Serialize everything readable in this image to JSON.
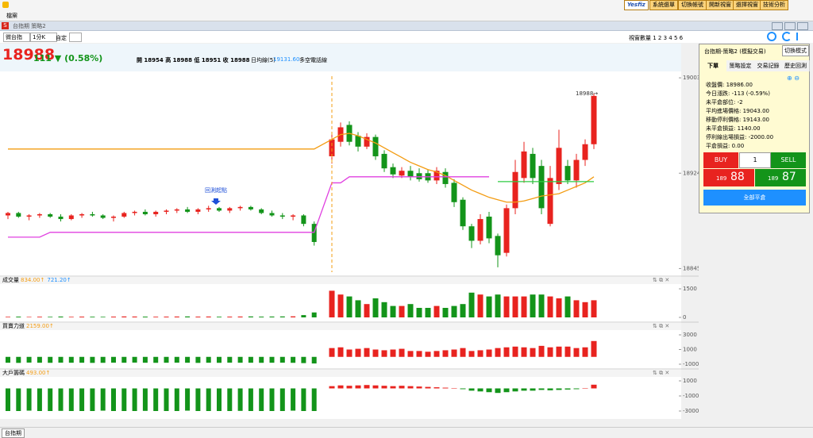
{
  "app": {
    "menu": "檔案",
    "logo": "Yesfiz",
    "top_buttons": [
      "系統選單",
      "切換帳號",
      "開新視窗",
      "選擇視窗",
      "技術分析"
    ],
    "window_title": "台指期 策略2"
  },
  "toolbar": {
    "symbol": "微台指",
    "period": "1分K",
    "custom": "自定",
    "window_count": "視窗數量 1 2 3 4 5 6"
  },
  "quote": {
    "price": "18988",
    "change": "111 ▼ (0.58%)",
    "ohlc_text": "開 18954 高 18988 低 18951 收 18988",
    "ma_label": "日均線(5)",
    "ma_value": "19131.60",
    "ma_suffix": "多空電話線"
  },
  "side_panel": {
    "title": "台指期-策略2 (模擬交易)",
    "mode_button": "切換模式",
    "tabs": [
      "下單",
      "策略設定",
      "交易記錄",
      "歷史回測"
    ],
    "info": [
      "收盤價: 18986.00",
      "今日漲跌: -113 (-0.59%)",
      "未平倉部位: -2",
      "平均進場價格: 19043.00",
      "移動停利價格: 19143.00",
      "未平倉損益: 1140.00",
      "停利線出場損益: -2000.00",
      "平倉損益: 0.00"
    ],
    "buy": "BUY",
    "qty": "1",
    "sell": "SELL",
    "bid_prefix": "189",
    "bid": "88",
    "ask_prefix": "189",
    "ask": "87",
    "close_all": "全部平倉"
  },
  "bottom_tab": "台指期",
  "chart_data": [
    {
      "type": "candlestick",
      "up_color": "#e8231f",
      "down_color": "#13941a",
      "annotation": "回測起點",
      "last_label": "18988→",
      "ylim": [
        18842,
        19007
      ],
      "yticks": [
        18845,
        18924,
        19003
      ],
      "ohlc": [
        [
          18889,
          18892,
          18886,
          18891
        ],
        [
          18891,
          18892,
          18887,
          18888
        ],
        [
          18888,
          18890,
          18885,
          18889
        ],
        [
          18889,
          18891,
          18887,
          18890
        ],
        [
          18890,
          18891,
          18887,
          18888
        ],
        [
          18888,
          18890,
          18884,
          18886
        ],
        [
          18886,
          18890,
          18885,
          18889
        ],
        [
          18889,
          18891,
          18887,
          18890
        ],
        [
          18890,
          18892,
          18888,
          18889
        ],
        [
          18889,
          18890,
          18886,
          18887
        ],
        [
          18887,
          18889,
          18884,
          18888
        ],
        [
          18888,
          18892,
          18887,
          18891
        ],
        [
          18891,
          18893,
          18889,
          18892
        ],
        [
          18892,
          18894,
          18889,
          18890
        ],
        [
          18890,
          18893,
          18888,
          18892
        ],
        [
          18892,
          18894,
          18890,
          18893
        ],
        [
          18893,
          18895,
          18891,
          18894
        ],
        [
          18894,
          18896,
          18891,
          18892
        ],
        [
          18892,
          18895,
          18890,
          18894
        ],
        [
          18894,
          18897,
          18892,
          18895
        ],
        [
          18895,
          18896,
          18892,
          18893
        ],
        [
          18893,
          18896,
          18891,
          18895
        ],
        [
          18895,
          18897,
          18893,
          18896
        ],
        [
          18896,
          18897,
          18893,
          18894
        ],
        [
          18894,
          18895,
          18890,
          18891
        ],
        [
          18891,
          18893,
          18888,
          18889
        ],
        [
          18889,
          18891,
          18886,
          18888
        ],
        [
          18888,
          18890,
          18885,
          18889
        ],
        [
          18889,
          18890,
          18880,
          18882
        ],
        [
          18882,
          18884,
          18864,
          18867
        ],
        [
          18938,
          18956,
          18932,
          18952
        ],
        [
          18950,
          18966,
          18946,
          18962
        ],
        [
          18964,
          18967,
          18947,
          18950
        ],
        [
          18955,
          18958,
          18942,
          18946
        ],
        [
          18946,
          18957,
          18944,
          18954
        ],
        [
          18954,
          18956,
          18935,
          18938
        ],
        [
          18940,
          18943,
          18925,
          18928
        ],
        [
          18929,
          18932,
          18920,
          18923
        ],
        [
          18922,
          18929,
          18920,
          18926
        ],
        [
          18926,
          18930,
          18918,
          18921
        ],
        [
          18924,
          18928,
          18917,
          18919
        ],
        [
          18924,
          18927,
          18916,
          18918
        ],
        [
          18918,
          18929,
          18915,
          18926
        ],
        [
          18925,
          18928,
          18912,
          18915
        ],
        [
          18916,
          18919,
          18896,
          18900
        ],
        [
          18902,
          18904,
          18877,
          18880
        ],
        [
          18880,
          18882,
          18862,
          18868
        ],
        [
          18868,
          18890,
          18865,
          18886
        ],
        [
          18888,
          18892,
          18866,
          18870
        ],
        [
          18872,
          18874,
          18846,
          18856
        ],
        [
          18858,
          18898,
          18855,
          18895
        ],
        [
          18895,
          18935,
          18890,
          18925
        ],
        [
          18920,
          18950,
          18916,
          18942
        ],
        [
          18940,
          18945,
          18915,
          18920
        ],
        [
          18930,
          18935,
          18890,
          18895
        ],
        [
          18882,
          18930,
          18880,
          18920
        ],
        [
          18915,
          18960,
          18910,
          18945
        ],
        [
          18930,
          18935,
          18915,
          18918
        ],
        [
          18918,
          18940,
          18912,
          18935
        ],
        [
          18935,
          18952,
          18930,
          18948
        ],
        [
          18948,
          18990,
          18944,
          18988
        ]
      ],
      "series": [
        {
          "color": "#f39c12",
          "values": [
            18944,
            18944,
            18944,
            18944,
            18944,
            18944,
            18944,
            18944,
            18944,
            18944,
            18944,
            18944,
            18944,
            18944,
            18944,
            18944,
            18944,
            18944,
            18944,
            18944,
            18944,
            18944,
            18944,
            18944,
            18944,
            18944,
            18944,
            18944,
            18944,
            18944,
            18952,
            18956,
            18957,
            18955,
            18952,
            18949,
            18945,
            18941,
            18937,
            18933,
            18930,
            18927,
            18925,
            18922,
            18918,
            18914,
            18910,
            18907,
            18904,
            18902,
            18900,
            18900,
            18901,
            18903,
            18905,
            18906,
            18907,
            18910,
            18913,
            18916,
            18921
          ]
        },
        {
          "color": "#e040e0",
          "values": [
            18871,
            18871,
            18871,
            18871,
            18875,
            18875,
            18875,
            18875,
            18875,
            18875,
            18875,
            18875,
            18875,
            18875,
            18875,
            18875,
            18875,
            18875,
            18875,
            18875,
            18875,
            18875,
            18875,
            18875,
            18875,
            18875,
            18875,
            18875,
            18875,
            18875,
            18916,
            18916,
            18921,
            18921,
            18921,
            18921,
            18921,
            18921,
            18921,
            18921,
            18921,
            18921,
            18921,
            18921,
            18921,
            18921,
            18921,
            18921,
            18921,
            null,
            null,
            null,
            null,
            null,
            null,
            null,
            null,
            null,
            null,
            null,
            null
          ]
        },
        {
          "color": "#2ecc40",
          "values": [
            null,
            null,
            null,
            null,
            null,
            null,
            null,
            null,
            null,
            null,
            null,
            null,
            null,
            null,
            null,
            null,
            null,
            null,
            null,
            null,
            null,
            null,
            null,
            null,
            null,
            null,
            null,
            null,
            null,
            null,
            null,
            null,
            null,
            null,
            null,
            null,
            null,
            null,
            null,
            null,
            null,
            null,
            null,
            null,
            null,
            null,
            null,
            null,
            null,
            18917,
            18917,
            18917,
            18917,
            18917,
            18917,
            18917,
            18917,
            18917,
            18917,
            18917,
            18917
          ]
        }
      ]
    },
    {
      "type": "bar",
      "title": "成交量",
      "legend_values": [
        {
          "text": "834.00↑",
          "color": "#f39c12"
        },
        {
          "text": "721.20↑",
          "color": "#1e90ff"
        }
      ],
      "ylim": [
        0,
        1500
      ],
      "yticks": [
        0,
        1500
      ],
      "values": [
        30,
        40,
        25,
        35,
        30,
        45,
        30,
        40,
        35,
        30,
        40,
        50,
        45,
        40,
        35,
        40,
        45,
        50,
        40,
        45,
        35,
        40,
        45,
        50,
        40,
        45,
        50,
        55,
        120,
        260,
        1400,
        1200,
        1100,
        900,
        700,
        1000,
        800,
        600,
        600,
        700,
        500,
        500,
        600,
        500,
        600,
        700,
        1300,
        1200,
        1100,
        1200,
        1100,
        1100,
        1100,
        1200,
        1200,
        1100,
        1000,
        1100,
        900,
        800,
        900
      ]
    },
    {
      "type": "bar",
      "title": "買賣力道",
      "legend_values": [
        {
          "text": "2159.00↑",
          "color": "#f39c12"
        }
      ],
      "ylim": [
        -1000,
        3000
      ],
      "yticks": [
        -1000,
        1000,
        3000
      ],
      "values": [
        -800,
        -820,
        -780,
        -800,
        -810,
        -790,
        -800,
        -800,
        -820,
        -810,
        -790,
        -800,
        -780,
        -800,
        -810,
        -800,
        -790,
        -800,
        -820,
        -800,
        -810,
        -790,
        -800,
        -800,
        -810,
        -800,
        -790,
        -810,
        -850,
        -900,
        1200,
        1300,
        1000,
        1100,
        1200,
        1000,
        900,
        1000,
        1100,
        800,
        800,
        700,
        800,
        900,
        1000,
        1200,
        800,
        900,
        1000,
        1200,
        1300,
        1400,
        1300,
        1200,
        1500,
        1300,
        1400,
        1400,
        1200,
        1300,
        2159
      ]
    },
    {
      "type": "bar",
      "title": "大戶籌碼",
      "legend_values": [
        {
          "text": "493.00↑",
          "color": "#f39c12"
        }
      ],
      "ylim": [
        -3000,
        1000
      ],
      "yticks": [
        -3000,
        -1000,
        1000
      ],
      "values": [
        -3000,
        -3000,
        -2950,
        -3000,
        -3000,
        -2980,
        -3000,
        -3000,
        -3000,
        -2950,
        -3000,
        -3000,
        -3000,
        -2980,
        -3000,
        -3000,
        -3000,
        -2950,
        -3000,
        -3000,
        -3000,
        -3000,
        -2980,
        -3000,
        -3000,
        -3000,
        -3000,
        -2950,
        -3000,
        -3000,
        300,
        400,
        350,
        400,
        450,
        400,
        350,
        300,
        350,
        300,
        250,
        200,
        150,
        100,
        50,
        -100,
        -300,
        -400,
        -500,
        -600,
        -500,
        -400,
        -300,
        -300,
        -200,
        -250,
        -200,
        -150,
        -100,
        50,
        493
      ]
    }
  ]
}
